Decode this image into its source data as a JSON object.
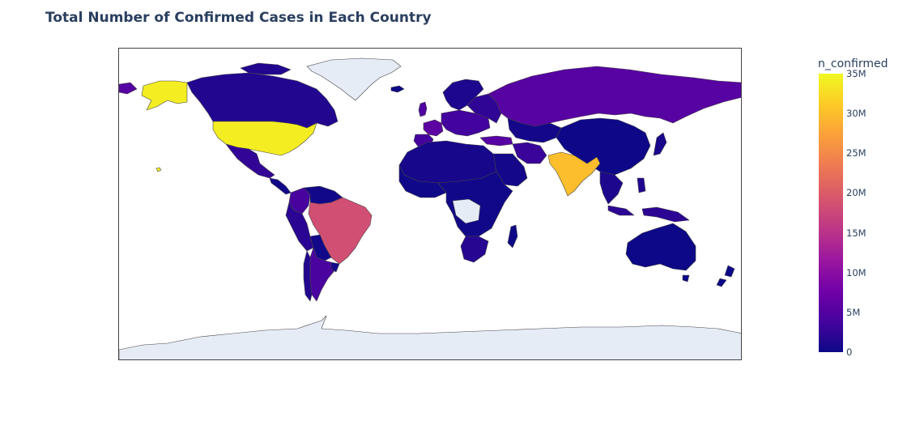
{
  "title": "Total Number of Confirmed Cases in Each Country",
  "colorbar": {
    "title": "n_confirmed",
    "ticks": [
      "35M",
      "30M",
      "25M",
      "20M",
      "15M",
      "10M",
      "5M",
      "0"
    ],
    "colorscale": [
      "#0d0887",
      "#46039f",
      "#7201a8",
      "#9c179e",
      "#bd3786",
      "#d8576b",
      "#ed7953",
      "#fb9f3a",
      "#fdca26",
      "#f0f921"
    ]
  },
  "chart_data": {
    "type": "choropleth",
    "value_field": "n_confirmed",
    "zrange": [
      0,
      35000000
    ],
    "map_background": "#e5ecf6",
    "regions": [
      {
        "name": "United States",
        "value": 34000000
      },
      {
        "name": "India",
        "value": 30000000
      },
      {
        "name": "Brazil",
        "value": 18500000
      },
      {
        "name": "Russia",
        "value": 5400000
      },
      {
        "name": "Argentina",
        "value": 4300000
      },
      {
        "name": "Colombia",
        "value": 4100000
      },
      {
        "name": "France",
        "value": 5800000
      },
      {
        "name": "Turkey",
        "value": 5400000
      },
      {
        "name": "United Kingdom",
        "value": 4700000
      },
      {
        "name": "Iran",
        "value": 3100000
      },
      {
        "name": "Mexico",
        "value": 2500000
      },
      {
        "name": "Peru",
        "value": 2000000
      },
      {
        "name": "South Africa",
        "value": 1800000
      },
      {
        "name": "Indonesia",
        "value": 2100000
      },
      {
        "name": "Canada",
        "value": 1400000
      },
      {
        "name": "China",
        "value": 92000
      },
      {
        "name": "Australia",
        "value": 30000
      },
      {
        "name": "Greenland",
        "value": null
      },
      {
        "name": "Antarctica",
        "value": null
      }
    ]
  }
}
